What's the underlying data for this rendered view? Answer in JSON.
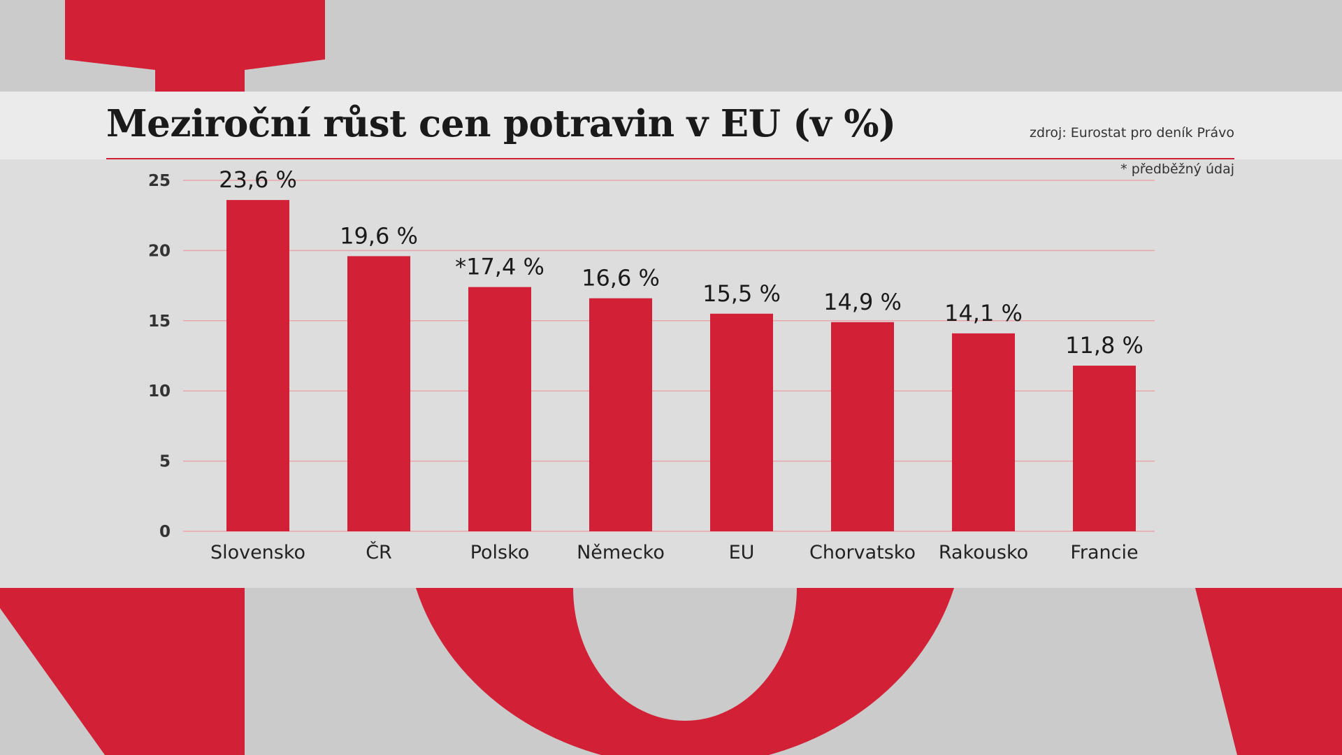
{
  "colors": {
    "accent": "#d22036",
    "panel": "#e4e4e4",
    "grid": "#e9a5ac"
  },
  "header": {
    "title": "Meziroční růst cen potravin v EU (v %)",
    "source": "zdroj: Eurostat pro deník Právo",
    "footnote": "* předběžný údaj"
  },
  "chart_data": {
    "type": "bar",
    "title": "Meziroční růst cen potravin v EU (v %)",
    "categories": [
      "Slovensko",
      "ČR",
      "Polsko",
      "Německo",
      "EU",
      "Chorvatsko",
      "Rakousko",
      "Francie"
    ],
    "values": [
      23.6,
      19.6,
      17.4,
      16.6,
      15.5,
      14.9,
      14.1,
      11.8
    ],
    "value_labels": [
      "23,6 %",
      "19,6 %",
      "*17,4 %",
      "16,6 %",
      "15,5 %",
      "14,9 %",
      "14,1 %",
      "11,8 %"
    ],
    "ylim": [
      0,
      25
    ],
    "yticks": [
      0,
      5,
      10,
      15,
      20,
      25
    ],
    "grid": true,
    "legend": "none"
  }
}
